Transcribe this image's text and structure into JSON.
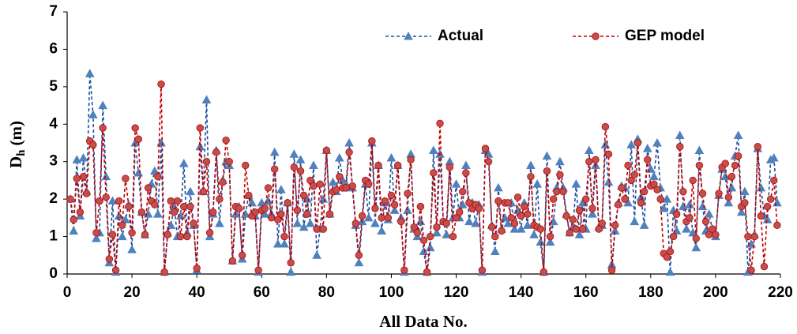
{
  "chart_data": {
    "type": "line",
    "xlabel": "All Data No.",
    "ylabel": {
      "main": "D",
      "sub": "h",
      "unit": "(m)"
    },
    "legend": "upper center",
    "xlim": [
      0,
      220
    ],
    "xticks": [
      0,
      20,
      40,
      60,
      80,
      100,
      120,
      140,
      160,
      180,
      200,
      220
    ],
    "ylim": [
      0,
      7
    ],
    "yticks": [
      0,
      1,
      2,
      3,
      4,
      5,
      6,
      7
    ],
    "x": [
      1,
      2,
      3,
      4,
      5,
      6,
      7,
      8,
      9,
      10,
      11,
      12,
      13,
      14,
      15,
      16,
      17,
      18,
      19,
      20,
      21,
      22,
      23,
      24,
      25,
      26,
      27,
      28,
      29,
      30,
      31,
      32,
      33,
      34,
      35,
      36,
      37,
      38,
      39,
      40,
      41,
      42,
      43,
      44,
      45,
      46,
      47,
      48,
      49,
      50,
      51,
      52,
      53,
      54,
      55,
      56,
      57,
      58,
      59,
      60,
      61,
      62,
      63,
      64,
      65,
      66,
      67,
      68,
      69,
      70,
      71,
      72,
      73,
      74,
      75,
      76,
      77,
      78,
      79,
      80,
      81,
      82,
      83,
      84,
      85,
      86,
      87,
      88,
      89,
      90,
      91,
      92,
      93,
      94,
      95,
      96,
      97,
      98,
      99,
      100,
      101,
      102,
      103,
      104,
      105,
      106,
      107,
      108,
      109,
      110,
      111,
      112,
      113,
      114,
      115,
      116,
      117,
      118,
      119,
      120,
      121,
      122,
      123,
      124,
      125,
      126,
      127,
      128,
      129,
      130,
      131,
      132,
      133,
      134,
      135,
      136,
      137,
      138,
      139,
      140,
      141,
      142,
      143,
      144,
      145,
      146,
      147,
      148,
      149,
      150,
      151,
      152,
      153,
      154,
      155,
      156,
      157,
      158,
      159,
      160,
      161,
      162,
      163,
      164,
      165,
      166,
      167,
      168,
      169,
      170,
      171,
      172,
      173,
      174,
      175,
      176,
      177,
      178,
      179,
      180,
      181,
      182,
      183,
      184,
      185,
      186,
      187,
      188,
      189,
      190,
      191,
      192,
      193,
      194,
      195,
      196,
      197,
      198,
      199,
      200,
      201,
      202,
      203,
      204,
      205,
      206,
      207,
      208,
      209,
      210,
      211,
      212,
      213,
      214,
      215,
      216,
      217,
      218,
      219
    ],
    "series": [
      {
        "name": "Actual",
        "color": "#1f4e9a",
        "marker_color": "#4f81bd",
        "marker": "triangle",
        "values": [
          2.0,
          1.15,
          3.05,
          1.55,
          3.1,
          2.2,
          5.35,
          4.25,
          0.95,
          1.1,
          4.5,
          2.6,
          0.3,
          1.95,
          0.05,
          1.55,
          1.0,
          1.45,
          1.85,
          0.65,
          3.5,
          2.7,
          1.65,
          1.05,
          1.6,
          2.4,
          2.75,
          1.6,
          3.5,
          0.05,
          1.1,
          1.3,
          1.8,
          1.0,
          1.55,
          2.95,
          1.1,
          2.2,
          1.3,
          0.1,
          3.4,
          2.2,
          4.65,
          1.0,
          1.6,
          3.3,
          1.35,
          2.5,
          3.0,
          2.9,
          0.35,
          1.6,
          1.8,
          0.4,
          1.6,
          2.1,
          1.9,
          1.55,
          0.05,
          1.9,
          1.6,
          1.95,
          1.6,
          3.25,
          0.8,
          2.25,
          0.8,
          1.9,
          0.05,
          3.2,
          1.35,
          3.05,
          1.25,
          2.0,
          1.35,
          2.9,
          0.5,
          1.2,
          2.0,
          3.3,
          1.6,
          2.45,
          2.2,
          3.1,
          2.5,
          2.4,
          3.5,
          2.3,
          1.3,
          0.3,
          1.4,
          2.4,
          1.5,
          3.5,
          1.35,
          2.9,
          1.15,
          1.9,
          1.45,
          3.1,
          1.7,
          2.9,
          1.5,
          0.05,
          1.7,
          3.2,
          1.2,
          1.0,
          1.4,
          0.6,
          0.05,
          0.7,
          3.3,
          1.1,
          3.2,
          1.4,
          1.05,
          3.0,
          1.5,
          2.4,
          1.5,
          1.85,
          2.9,
          1.4,
          1.9,
          1.35,
          1.85,
          0.05,
          3.3,
          3.2,
          1.3,
          0.6,
          2.3,
          1.2,
          1.5,
          1.35,
          1.9,
          1.2,
          1.7,
          1.2,
          1.9,
          1.3,
          2.9,
          1.05,
          2.4,
          0.85,
          0.05,
          3.15,
          0.85,
          1.4,
          2.3,
          3.0,
          2.3,
          1.6,
          1.1,
          1.25,
          2.4,
          1.05,
          1.9,
          1.2,
          3.3,
          1.6,
          2.9,
          1.25,
          1.3,
          3.45,
          2.45,
          0.25,
          1.15,
          1.9,
          2.35,
          2.3,
          1.9,
          3.45,
          1.4,
          3.6,
          2.05,
          1.3,
          3.35,
          2.8,
          2.6,
          3.5,
          2.3,
          1.75,
          2.0,
          0.05,
          1.7,
          1.15,
          3.7,
          1.8,
          1.2,
          1.85,
          1.1,
          0.7,
          3.3,
          1.8,
          1.15,
          1.6,
          1.2,
          1.0,
          2.1,
          2.8,
          2.6,
          1.9,
          2.3,
          3.15,
          3.7,
          1.65,
          2.2,
          0.05,
          0.8,
          1.05,
          3.35,
          2.3,
          1.55,
          1.45,
          3.05,
          3.1,
          1.9
        ]
      },
      {
        "name": "GEP model",
        "color": "#c00000",
        "marker_color": "#c0504d",
        "marker": "circle",
        "values": [
          2.0,
          1.45,
          2.55,
          1.65,
          2.6,
          2.15,
          3.55,
          3.45,
          1.1,
          1.95,
          3.9,
          2.05,
          0.4,
          1.05,
          0.1,
          1.95,
          1.3,
          2.55,
          1.8,
          1.1,
          3.9,
          3.6,
          1.65,
          1.05,
          2.3,
          1.95,
          1.85,
          2.6,
          5.07,
          0.05,
          1.05,
          1.95,
          1.65,
          1.95,
          1.0,
          1.8,
          1.0,
          1.8,
          1.35,
          0.15,
          3.9,
          2.2,
          3.0,
          1.1,
          1.65,
          3.25,
          2.0,
          2.45,
          3.57,
          3.0,
          0.35,
          1.8,
          1.75,
          0.5,
          2.9,
          2.1,
          1.55,
          1.65,
          0.1,
          1.7,
          1.75,
          2.3,
          1.5,
          2.8,
          1.45,
          1.6,
          1.0,
          1.9,
          0.3,
          2.85,
          1.7,
          2.75,
          2.1,
          1.6,
          2.5,
          2.35,
          1.2,
          2.4,
          1.2,
          3.3,
          1.6,
          2.2,
          2.25,
          2.6,
          2.3,
          2.3,
          3.25,
          2.35,
          1.35,
          0.5,
          1.55,
          2.5,
          2.4,
          3.55,
          1.75,
          2.9,
          1.5,
          1.95,
          1.5,
          2.1,
          1.85,
          2.9,
          1.4,
          0.1,
          2.15,
          3.05,
          1.25,
          1.1,
          1.8,
          0.9,
          0.05,
          1.0,
          2.7,
          1.25,
          4.02,
          1.4,
          1.35,
          2.85,
          1.0,
          1.5,
          1.65,
          2.2,
          2.7,
          1.9,
          1.75,
          1.85,
          1.75,
          0.1,
          3.35,
          3.0,
          1.25,
          1.0,
          1.95,
          1.15,
          1.9,
          1.9,
          1.5,
          1.35,
          2.05,
          1.55,
          1.8,
          1.6,
          2.6,
          1.3,
          1.25,
          1.2,
          0.05,
          2.75,
          1.0,
          2.0,
          2.2,
          2.65,
          2.2,
          1.55,
          1.1,
          1.45,
          1.2,
          1.7,
          1.2,
          2.0,
          3.0,
          1.75,
          3.05,
          1.2,
          1.35,
          3.93,
          3.2,
          0.1,
          1.3,
          1.85,
          2.3,
          2.0,
          2.9,
          2.5,
          2.65,
          3.5,
          1.9,
          2.2,
          3.05,
          2.35,
          2.4,
          2.25,
          2.0,
          0.55,
          0.45,
          0.6,
          1.0,
          1.6,
          3.4,
          2.2,
          1.4,
          1.5,
          2.5,
          0.95,
          2.9,
          2.15,
          1.4,
          1.05,
          1.2,
          1.05,
          2.15,
          2.85,
          2.95,
          2.05,
          2.6,
          2.9,
          3.15,
          1.8,
          1.9,
          1.0,
          0.1,
          1.0,
          3.4,
          1.55,
          0.2,
          1.8,
          2.0,
          2.5,
          1.3
        ]
      }
    ]
  }
}
